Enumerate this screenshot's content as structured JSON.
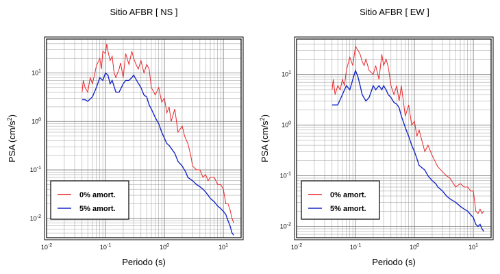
{
  "chart_data": [
    {
      "type": "line",
      "title": "Sitio AFBR [ NS ]",
      "xlabel": "Periodo (s)",
      "ylabel_text": "PSA (cm/s",
      "ylabel_exp": "2",
      "ylabel_close": ")",
      "xscale": "log",
      "yscale": "log",
      "xlim": [
        0.01,
        20
      ],
      "ylim": [
        0.004,
        50
      ],
      "grid": true,
      "legend": "bottom-left",
      "x_ticks": [
        {
          "base": "10",
          "exp": "-2"
        },
        {
          "base": "10",
          "exp": "-1"
        },
        {
          "base": "10",
          "exp": "0"
        },
        {
          "base": "10",
          "exp": "1"
        }
      ],
      "y_ticks": [
        {
          "base": "10",
          "exp": "-2"
        },
        {
          "base": "10",
          "exp": "-1"
        },
        {
          "base": "10",
          "exp": "0"
        },
        {
          "base": "10",
          "exp": "1"
        }
      ],
      "series": [
        {
          "name": "0% amort.",
          "color": "#e8262a",
          "x": [
            0.04,
            0.042,
            0.045,
            0.05,
            0.055,
            0.06,
            0.065,
            0.07,
            0.08,
            0.085,
            0.09,
            0.1,
            0.105,
            0.11,
            0.12,
            0.13,
            0.14,
            0.15,
            0.16,
            0.17,
            0.18,
            0.2,
            0.22,
            0.25,
            0.28,
            0.3,
            0.33,
            0.36,
            0.4,
            0.45,
            0.5,
            0.55,
            0.6,
            0.7,
            0.8,
            0.9,
            1.0,
            1.1,
            1.2,
            1.3,
            1.5,
            1.7,
            2.0,
            2.2,
            2.5,
            2.8,
            3.0,
            3.5,
            4.0,
            4.5,
            5.0,
            5.5,
            6.0,
            7.0,
            8.0,
            9.0,
            10.0,
            11.0,
            12.0,
            13.0,
            14.0,
            15.0
          ],
          "y": [
            4,
            7,
            5,
            4,
            8,
            6,
            9,
            14,
            20,
            12,
            28,
            25,
            40,
            28,
            18,
            22,
            10,
            8,
            10,
            12,
            16,
            8,
            25,
            15,
            28,
            20,
            15,
            12,
            18,
            10,
            15,
            12,
            5,
            3.5,
            5,
            2.5,
            3,
            1.5,
            2,
            1,
            1.8,
            0.6,
            0.8,
            0.5,
            0.35,
            0.2,
            0.12,
            0.1,
            0.1,
            0.07,
            0.08,
            0.06,
            0.07,
            0.07,
            0.05,
            0.05,
            0.04,
            0.02,
            0.02,
            0.015,
            0.01,
            0.008
          ]
        },
        {
          "name": "5% amort.",
          "color": "#1627c7",
          "x": [
            0.04,
            0.045,
            0.05,
            0.06,
            0.07,
            0.08,
            0.09,
            0.1,
            0.11,
            0.12,
            0.13,
            0.15,
            0.17,
            0.2,
            0.22,
            0.25,
            0.28,
            0.3,
            0.35,
            0.4,
            0.45,
            0.5,
            0.55,
            0.6,
            0.7,
            0.8,
            0.9,
            1.0,
            1.1,
            1.2,
            1.3,
            1.5,
            1.7,
            2.0,
            2.3,
            2.5,
            3.0,
            3.5,
            4.0,
            4.5,
            5.0,
            5.5,
            6.0,
            7.0,
            8.0,
            9.0,
            10.0,
            11.0,
            12.0,
            13.0,
            14.0,
            15.0
          ],
          "y": [
            2.8,
            2.8,
            2.6,
            3.2,
            5,
            8,
            7,
            10,
            9,
            6,
            7,
            4,
            4,
            6,
            7,
            7,
            8,
            9,
            6.5,
            5,
            3.5,
            3.2,
            2.2,
            1.8,
            1.2,
            0.9,
            0.6,
            0.45,
            0.35,
            0.32,
            0.28,
            0.22,
            0.15,
            0.12,
            0.09,
            0.07,
            0.06,
            0.05,
            0.045,
            0.04,
            0.035,
            0.03,
            0.026,
            0.022,
            0.018,
            0.016,
            0.014,
            0.012,
            0.009,
            0.007,
            0.005,
            0.0045
          ]
        }
      ]
    },
    {
      "type": "line",
      "title": "Sitio AFBR [ EW ]",
      "xlabel": "Periodo (s)",
      "ylabel_text": "PSA (cm/s",
      "ylabel_exp": "2",
      "ylabel_close": ")",
      "xscale": "log",
      "yscale": "log",
      "xlim": [
        0.01,
        20
      ],
      "ylim": [
        0.006,
        50
      ],
      "grid": true,
      "legend": "bottom-left",
      "x_ticks": [
        {
          "base": "10",
          "exp": "-2"
        },
        {
          "base": "10",
          "exp": "-1"
        },
        {
          "base": "10",
          "exp": "0"
        },
        {
          "base": "10",
          "exp": "1"
        }
      ],
      "y_ticks": [
        {
          "base": "10",
          "exp": "-2"
        },
        {
          "base": "10",
          "exp": "-1"
        },
        {
          "base": "10",
          "exp": "0"
        },
        {
          "base": "10",
          "exp": "1"
        }
      ],
      "series": [
        {
          "name": "0% amort.",
          "color": "#e8262a",
          "x": [
            0.04,
            0.042,
            0.045,
            0.05,
            0.055,
            0.06,
            0.065,
            0.07,
            0.08,
            0.09,
            0.1,
            0.11,
            0.12,
            0.13,
            0.14,
            0.15,
            0.17,
            0.2,
            0.22,
            0.25,
            0.28,
            0.3,
            0.33,
            0.36,
            0.4,
            0.45,
            0.5,
            0.55,
            0.6,
            0.7,
            0.8,
            0.9,
            1.0,
            1.1,
            1.2,
            1.5,
            1.7,
            2.0,
            2.5,
            3.0,
            3.5,
            4.0,
            5.0,
            6.0,
            7.0,
            8.0,
            9.0,
            10.0,
            11.0,
            12.0,
            13.0,
            14.0,
            15.0
          ],
          "y": [
            5,
            8,
            4,
            6,
            5,
            8,
            6,
            12,
            22,
            15,
            36,
            30,
            25,
            18,
            15,
            20,
            12,
            10,
            15,
            8,
            25,
            15,
            20,
            14,
            6,
            4,
            6,
            3,
            6,
            1.5,
            2.5,
            1,
            1.2,
            0.6,
            0.8,
            0.3,
            0.4,
            0.25,
            0.15,
            0.12,
            0.1,
            0.09,
            0.06,
            0.07,
            0.06,
            0.06,
            0.05,
            0.05,
            0.02,
            0.018,
            0.022,
            0.018,
            0.02
          ]
        },
        {
          "name": "5% amort.",
          "color": "#1627c7",
          "x": [
            0.04,
            0.045,
            0.05,
            0.06,
            0.07,
            0.08,
            0.09,
            0.1,
            0.11,
            0.12,
            0.13,
            0.15,
            0.17,
            0.2,
            0.22,
            0.25,
            0.28,
            0.3,
            0.33,
            0.36,
            0.4,
            0.45,
            0.5,
            0.55,
            0.6,
            0.7,
            0.8,
            0.9,
            1.0,
            1.1,
            1.2,
            1.5,
            1.7,
            2.0,
            2.3,
            2.5,
            3.0,
            3.5,
            4.0,
            5.0,
            6.0,
            7.0,
            8.0,
            9.0,
            10.0,
            11.0,
            12.0,
            13.0,
            14.0,
            15.0
          ],
          "y": [
            2.5,
            2.5,
            2.5,
            4,
            6,
            5,
            8,
            12,
            9,
            6,
            4,
            3,
            3.5,
            6,
            5,
            6,
            5,
            6,
            5,
            4,
            3.5,
            2.8,
            2.6,
            2.2,
            1.5,
            0.9,
            0.6,
            0.4,
            0.3,
            0.22,
            0.16,
            0.13,
            0.1,
            0.08,
            0.07,
            0.06,
            0.05,
            0.04,
            0.035,
            0.03,
            0.025,
            0.022,
            0.02,
            0.017,
            0.015,
            0.011,
            0.01,
            0.011,
            0.009,
            0.008
          ]
        }
      ]
    }
  ]
}
